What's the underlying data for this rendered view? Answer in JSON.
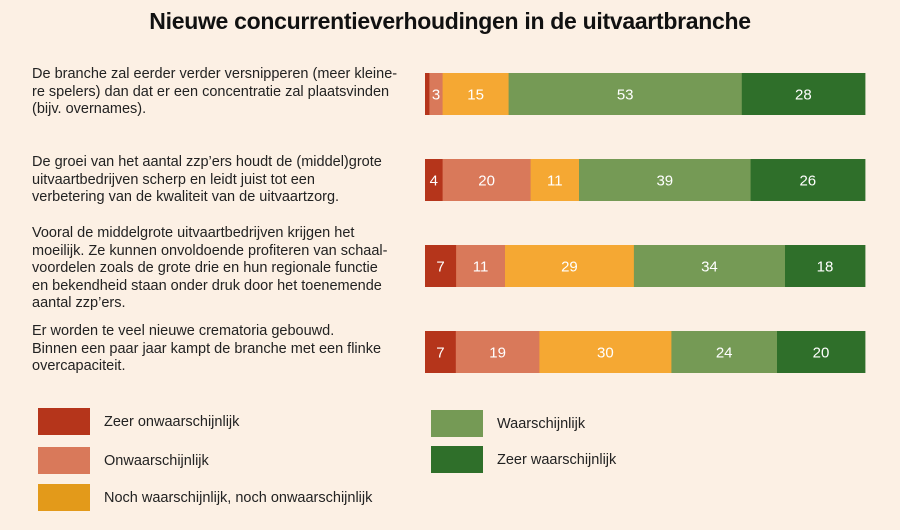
{
  "chart_data": {
    "type": "bar",
    "stacked": true,
    "orientation": "horizontal",
    "title": "Nieuwe concurrentieverhoudingen in de uitvaartbranche",
    "categories": [
      "De branche zal eerder verder versnipperen (meer kleine-re spelers) dan dat er een concentratie zal plaatsvinden (bijv. overnames).",
      "De groei van het aantal zzp’ers houdt de (middel)grote uitvaartbedrijven scherp en leidt juist tot een verbetering van de kwaliteit van de uitvaartzorg.",
      "Vooral de middelgrote uitvaartbedrijven krijgen het moeilijk. Ze kunnen onvoldoende profiteren van schaal-voordelen zoals de grote drie en hun regionale functie en bekendheid staan onder druk door het toenemende aantal zzp’ers.",
      "Er worden te veel nieuwe crematoria gebouwd. Binnen een paar jaar kampt de branche met een flinke overcapaciteit."
    ],
    "category_lines": [
      [
        "De branche zal eerder verder versnipperen (meer kleine-",
        "re spelers) dan dat er een concentratie zal plaatsvinden",
        "(bijv. overnames)."
      ],
      [
        "De groei van het aantal zzp’ers houdt de (middel)grote",
        "uitvaartbedrijven scherp en leidt juist tot een",
        "verbetering van de kwaliteit van de uitvaartzorg."
      ],
      [
        "Vooral de middelgrote uitvaartbedrijven krijgen het",
        "moeilijk. Ze kunnen onvoldoende profiteren van schaal-",
        "voordelen zoals de grote drie en hun regionale functie",
        "en bekendheid staan onder druk door het toenemende",
        "aantal zzp’ers."
      ],
      [
        "Er worden te veel nieuwe crematoria gebouwd.",
        "Binnen een paar jaar kampt de branche met een flinke",
        "overcapaciteit."
      ]
    ],
    "series": [
      {
        "name": "Zeer onwaarschijnlijk",
        "color": "#b5351b",
        "values": [
          1,
          4,
          7,
          7
        ]
      },
      {
        "name": "Onwaarschijnlijk",
        "color": "#d9795a",
        "values": [
          3,
          20,
          11,
          19
        ]
      },
      {
        "name": "Noch waarschijnlijk, noch onwaarschijnlijk",
        "color": "#f5a833",
        "values": [
          15,
          11,
          29,
          30
        ]
      },
      {
        "name": "Waarschijnlijk",
        "color": "#759a55",
        "values": [
          53,
          39,
          34,
          24
        ]
      },
      {
        "name": "Zeer waarschijnlijk",
        "color": "#2f6f2a",
        "values": [
          28,
          26,
          18,
          20
        ]
      }
    ],
    "data_labels": [
      [
        "",
        "3",
        "15",
        "53",
        "28"
      ],
      [
        "4",
        "20",
        "11",
        "39",
        "26"
      ],
      [
        "7",
        "11",
        "29",
        "34",
        "18"
      ],
      [
        "7",
        "19",
        "30",
        "24",
        "20"
      ]
    ],
    "legend": {
      "placement": "bottom",
      "items": [
        {
          "label": "Zeer onwaarschijnlijk",
          "color": "#b5351b"
        },
        {
          "label": "Onwaarschijnlijk",
          "color": "#d9795a"
        },
        {
          "label": "Noch waarschijnlijk, noch onwaarschijnlijk",
          "color": "#e39a1a"
        },
        {
          "label": "Waarschijnlijk",
          "color": "#759a55"
        },
        {
          "label": "Zeer waarschijnlijk",
          "color": "#2f6f2a"
        }
      ]
    }
  }
}
